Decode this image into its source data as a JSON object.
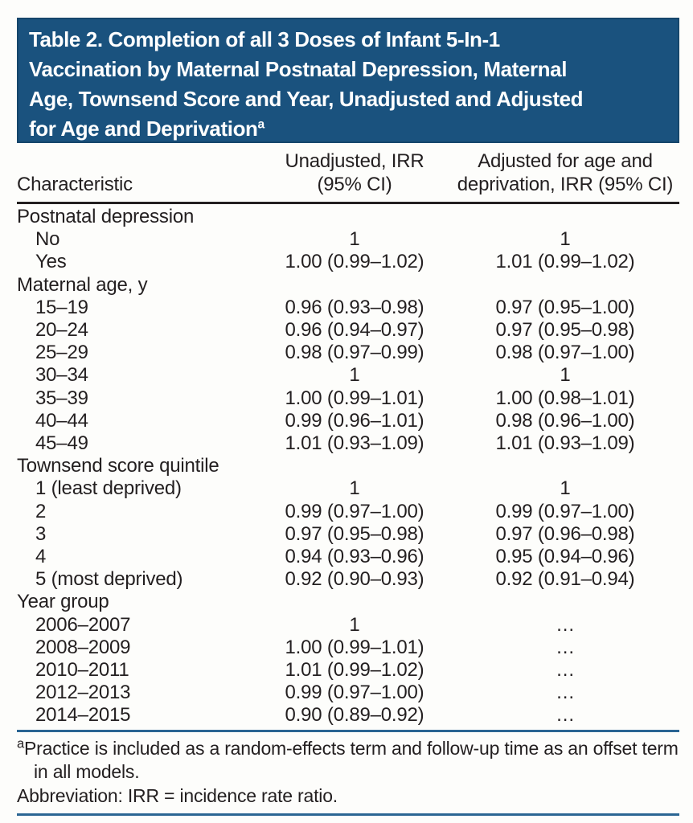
{
  "colors": {
    "banner_background": "#1A527E",
    "banner_border": "#16466B",
    "banner_text": "#FFFFFF",
    "body_text": "#231F20",
    "header_rule_black": "#231F20",
    "footnote_rule_blue": "#2B6593",
    "page_background": "#FDFDFB"
  },
  "banner": {
    "line1": "Table 2. Completion of all 3 Doses of Infant 5-In-1",
    "line2": "Vaccination by Maternal Postnatal Depression, Maternal",
    "line3": "Age, Townsend Score and Year, Unadjusted and Adjusted",
    "line4": "for Age and Deprivation",
    "superscript": "a"
  },
  "table": {
    "characteristic_header": "Characteristic",
    "unadjusted_header": "Unadjusted, IRR\n(95% CI)",
    "adjusted_header": "Adjusted for age and\ndeprivation, IRR (95% CI)",
    "rows": [
      {
        "label": "Postnatal depression",
        "indent": false,
        "unadjusted": "",
        "adjusted": ""
      },
      {
        "label": "No",
        "indent": true,
        "unadjusted": "1",
        "adjusted": "1"
      },
      {
        "label": "Yes",
        "indent": true,
        "unadjusted": "1.00 (0.99–1.02)",
        "adjusted": "1.01 (0.99–1.02)"
      },
      {
        "label": "Maternal age, y",
        "indent": false,
        "unadjusted": "",
        "adjusted": ""
      },
      {
        "label": "15–19",
        "indent": true,
        "unadjusted": "0.96 (0.93–0.98)",
        "adjusted": "0.97 (0.95–1.00)"
      },
      {
        "label": "20–24",
        "indent": true,
        "unadjusted": "0.96 (0.94–0.97)",
        "adjusted": "0.97 (0.95–0.98)"
      },
      {
        "label": "25–29",
        "indent": true,
        "unadjusted": "0.98 (0.97–0.99)",
        "adjusted": "0.98 (0.97–1.00)"
      },
      {
        "label": "30–34",
        "indent": true,
        "unadjusted": "1",
        "adjusted": "1"
      },
      {
        "label": "35–39",
        "indent": true,
        "unadjusted": "1.00 (0.99–1.01)",
        "adjusted": "1.00 (0.98–1.01)"
      },
      {
        "label": "40–44",
        "indent": true,
        "unadjusted": "0.99 (0.96–1.01)",
        "adjusted": "0.98 (0.96–1.00)"
      },
      {
        "label": "45–49",
        "indent": true,
        "unadjusted": "1.01 (0.93–1.09)",
        "adjusted": "1.01 (0.93–1.09)"
      },
      {
        "label": "Townsend score quintile",
        "indent": false,
        "unadjusted": "",
        "adjusted": ""
      },
      {
        "label": "1 (least deprived)",
        "indent": true,
        "unadjusted": "1",
        "adjusted": "1"
      },
      {
        "label": "2",
        "indent": true,
        "unadjusted": "0.99 (0.97–1.00)",
        "adjusted": "0.99 (0.97–1.00)"
      },
      {
        "label": "3",
        "indent": true,
        "unadjusted": "0.97 (0.95–0.98)",
        "adjusted": "0.97 (0.96–0.98)"
      },
      {
        "label": "4",
        "indent": true,
        "unadjusted": "0.94 (0.93–0.96)",
        "adjusted": "0.95 (0.94–0.96)"
      },
      {
        "label": "5 (most deprived)",
        "indent": true,
        "unadjusted": "0.92 (0.90–0.93)",
        "adjusted": "0.92 (0.91–0.94)"
      },
      {
        "label": "Year group",
        "indent": false,
        "unadjusted": "",
        "adjusted": ""
      },
      {
        "label": "2006–2007",
        "indent": true,
        "unadjusted": "1",
        "adjusted": "…"
      },
      {
        "label": "2008–2009",
        "indent": true,
        "unadjusted": "1.00 (0.99–1.01)",
        "adjusted": "…"
      },
      {
        "label": "2010–2011",
        "indent": true,
        "unadjusted": "1.01 (0.99–1.02)",
        "adjusted": "…"
      },
      {
        "label": "2012–2013",
        "indent": true,
        "unadjusted": "0.99 (0.97–1.00)",
        "adjusted": "…"
      },
      {
        "label": "2014–2015",
        "indent": true,
        "unadjusted": "0.90 (0.89–0.92)",
        "adjusted": "…"
      }
    ]
  },
  "footnotes": {
    "note_marker": "a",
    "note_text": "Practice is included as a random-effects term and follow-up time as an offset term in all models.",
    "abbreviation": "Abbreviation: IRR = incidence rate ratio."
  }
}
